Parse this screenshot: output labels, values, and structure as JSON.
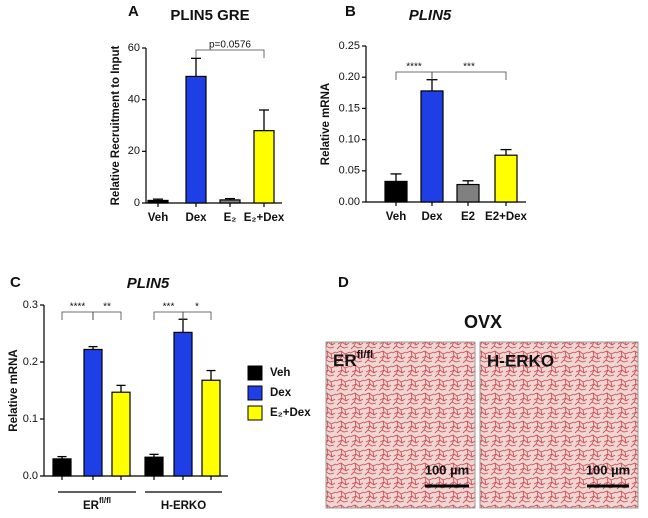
{
  "chart_data": [
    {
      "type": "bar",
      "panel_label": "A",
      "title": "PLIN5 GRE",
      "y_label": "Relative Recruitment to Input",
      "categories": [
        "Veh",
        "Dex",
        "E₂",
        "E₂+Dex"
      ],
      "values": [
        1,
        49,
        1.2,
        28
      ],
      "errors": [
        0.5,
        7,
        0.5,
        8
      ],
      "colors": [
        "#000000",
        "#1f3fe6",
        "#808080",
        "#ffff00"
      ],
      "ylim": [
        0,
        60
      ],
      "yticks": [
        0,
        20,
        40,
        60
      ],
      "annotations": [
        "p=0.0576"
      ]
    },
    {
      "type": "bar",
      "panel_label": "B",
      "title": "PLIN5",
      "y_label": "Relative mRNA",
      "categories": [
        "Veh",
        "Dex",
        "E2",
        "E2+Dex"
      ],
      "values": [
        0.033,
        0.178,
        0.028,
        0.075
      ],
      "errors": [
        0.012,
        0.018,
        0.006,
        0.009
      ],
      "colors": [
        "#000000",
        "#1f3fe6",
        "#808080",
        "#ffff00"
      ],
      "ylim": [
        0,
        0.25
      ],
      "yticks": [
        {
          "value": 0,
          "label": "0.00"
        },
        {
          "value": 0.05,
          "label": "0.05"
        },
        {
          "value": 0.1,
          "label": "0.10"
        },
        {
          "value": 0.15,
          "label": "0.15"
        },
        {
          "value": 0.2,
          "label": "0.20"
        },
        {
          "value": 0.25,
          "label": "0.25"
        }
      ],
      "annotations": [
        "****",
        "***"
      ]
    },
    {
      "type": "grouped-bar",
      "panel_label": "C",
      "title": "PLIN5",
      "y_label": "Relative mRNA",
      "categories": [
        "ER",
        "H-ERKO"
      ],
      "category_superscripts": [
        "fl/fl",
        null
      ],
      "series": [
        {
          "name": "Veh",
          "color": "#000000",
          "values": [
            0.03,
            0.033
          ],
          "errors": [
            0.004,
            0.005
          ]
        },
        {
          "name": "Dex",
          "color": "#1f3fe6",
          "values": [
            0.222,
            0.252
          ],
          "errors": [
            0.005,
            0.023
          ]
        },
        {
          "name": "E₂+Dex",
          "color": "#ffff00",
          "values": [
            0.147,
            0.168
          ],
          "errors": [
            0.012,
            0.017
          ]
        }
      ],
      "ylim": [
        0,
        0.3
      ],
      "yticks": [
        {
          "value": 0,
          "label": "0.0"
        },
        {
          "value": 0.1,
          "label": "0.1"
        },
        {
          "value": 0.2,
          "label": "0.2"
        },
        {
          "value": 0.3,
          "label": "0.3"
        }
      ],
      "annotations": [
        "****",
        "**",
        "***",
        "*"
      ]
    }
  ],
  "panel_d": {
    "panel_label": "D",
    "title": "OVX",
    "images": [
      {
        "label": "ER",
        "label_sup": "fl/fl",
        "scale_bar": "100 µm"
      },
      {
        "label": "H-ERKO",
        "scale_bar": "100 µm"
      }
    ]
  }
}
